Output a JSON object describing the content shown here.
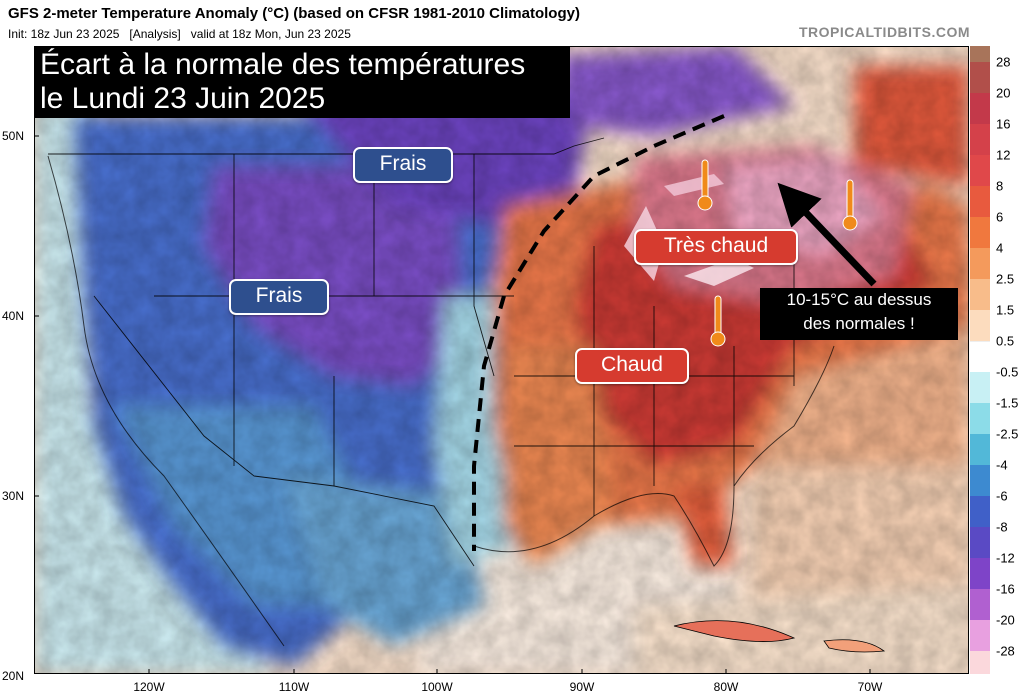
{
  "header": {
    "title": "GFS 2-meter Temperature Anomaly (°C) (based on CFSR 1981-2010 Climatology)",
    "subtitle": "Init: 18z Jun 23 2025   [Analysis]   valid at 18z Mon, Jun 23 2025",
    "credit": "TROPICALTIDBITS.COM"
  },
  "banner": {
    "line1": "Écart à la normale des températures",
    "line2": "le Lundi 23 Juin 2025"
  },
  "labels": {
    "frais_north": "Frais",
    "frais_west": "Frais",
    "tres_chaud": "Très chaud",
    "chaud": "Chaud"
  },
  "annotation": {
    "line1": "10-15°C au dessus",
    "line2": "des normales !"
  },
  "axes": {
    "lat_labels": [
      "50N",
      "40N",
      "30N",
      "20N"
    ],
    "lon_labels": [
      "120W",
      "110W",
      "100W",
      "90W",
      "80W",
      "70W"
    ]
  },
  "colorbar": {
    "labels": [
      "28",
      "20",
      "16",
      "12",
      "8",
      "6",
      "4",
      "2.5",
      "1.5",
      "0.5",
      "-0.5",
      "-1.5",
      "-2.5",
      "-4",
      "-6",
      "-8",
      "-12",
      "-16",
      "-20",
      "-28"
    ],
    "colors": {
      "hot_extreme": "#a05a3c",
      "hot": "#c8323c",
      "warm": "#ee6e46",
      "mild": "#f6b082",
      "neutral": "#ffffff",
      "cool": "#78d2e0",
      "cold": "#4678d2",
      "very_cold": "#7848c8"
    }
  }
}
